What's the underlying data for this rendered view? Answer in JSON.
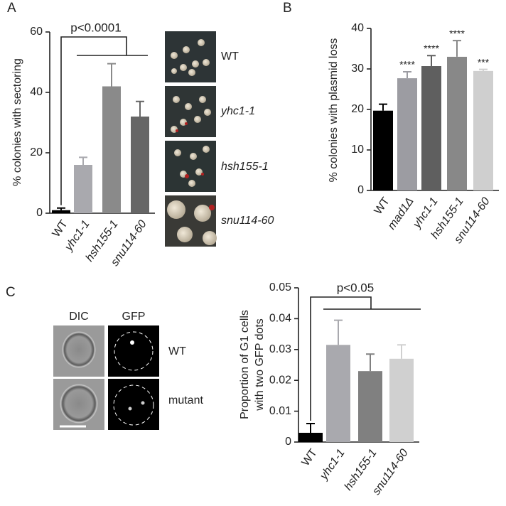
{
  "chart_data": [
    {
      "type": "bar",
      "panel_label": "A",
      "y_label": "% colonies with sectoring",
      "categories": [
        "WT",
        "yhc1-1",
        "hsh155-1",
        "snu114-60"
      ],
      "values": [
        1,
        16,
        42,
        32
      ],
      "errors": [
        0.7,
        2.5,
        7.5,
        5
      ],
      "colors": [
        "#000000",
        "#a9a9ae",
        "#8a8a8a",
        "#666666"
      ],
      "ylim": [
        0,
        60
      ],
      "yticks": [
        0,
        20,
        40,
        60
      ],
      "annotation": "p<0.0001",
      "image_labels": [
        "WT",
        "yhc1-1",
        "hsh155-1",
        "snu114-60"
      ]
    },
    {
      "type": "bar",
      "panel_label": "B",
      "y_label": "% colonies with plasmid loss",
      "categories": [
        "WT",
        "mad1Δ",
        "yhc1-1",
        "hsh155-1",
        "snu114-60"
      ],
      "values": [
        19.7,
        27.7,
        30.7,
        33,
        29.5
      ],
      "errors": [
        1.6,
        1.6,
        2.6,
        4,
        0.4
      ],
      "colors": [
        "#000000",
        "#9c9ca2",
        "#5f5f5f",
        "#888888",
        "#cfcfcf"
      ],
      "ylim": [
        0,
        40
      ],
      "yticks": [
        0,
        10,
        20,
        30,
        40
      ],
      "significance": [
        null,
        "****",
        "****",
        "****",
        "***"
      ]
    },
    {
      "type": "bar",
      "panel_label": "C",
      "y_label": [
        "Proportion of G1 cells",
        "with two GFP dots"
      ],
      "categories": [
        "WT",
        "yhc1-1",
        "hsh155-1",
        "snu114-60"
      ],
      "values": [
        0.003,
        0.0315,
        0.023,
        0.027
      ],
      "errors": [
        0.003,
        0.008,
        0.0055,
        0.0045
      ],
      "colors": [
        "#000000",
        "#a9a9ae",
        "#808080",
        "#d0d0d0"
      ],
      "ylim": [
        0,
        0.05
      ],
      "yticks": [
        0,
        0.01,
        0.02,
        0.03,
        0.04,
        0.05
      ],
      "annotation": "p<0.05",
      "image_labels": {
        "columns": [
          "DIC",
          "GFP"
        ],
        "rows": [
          "WT",
          "mutant"
        ]
      }
    }
  ]
}
